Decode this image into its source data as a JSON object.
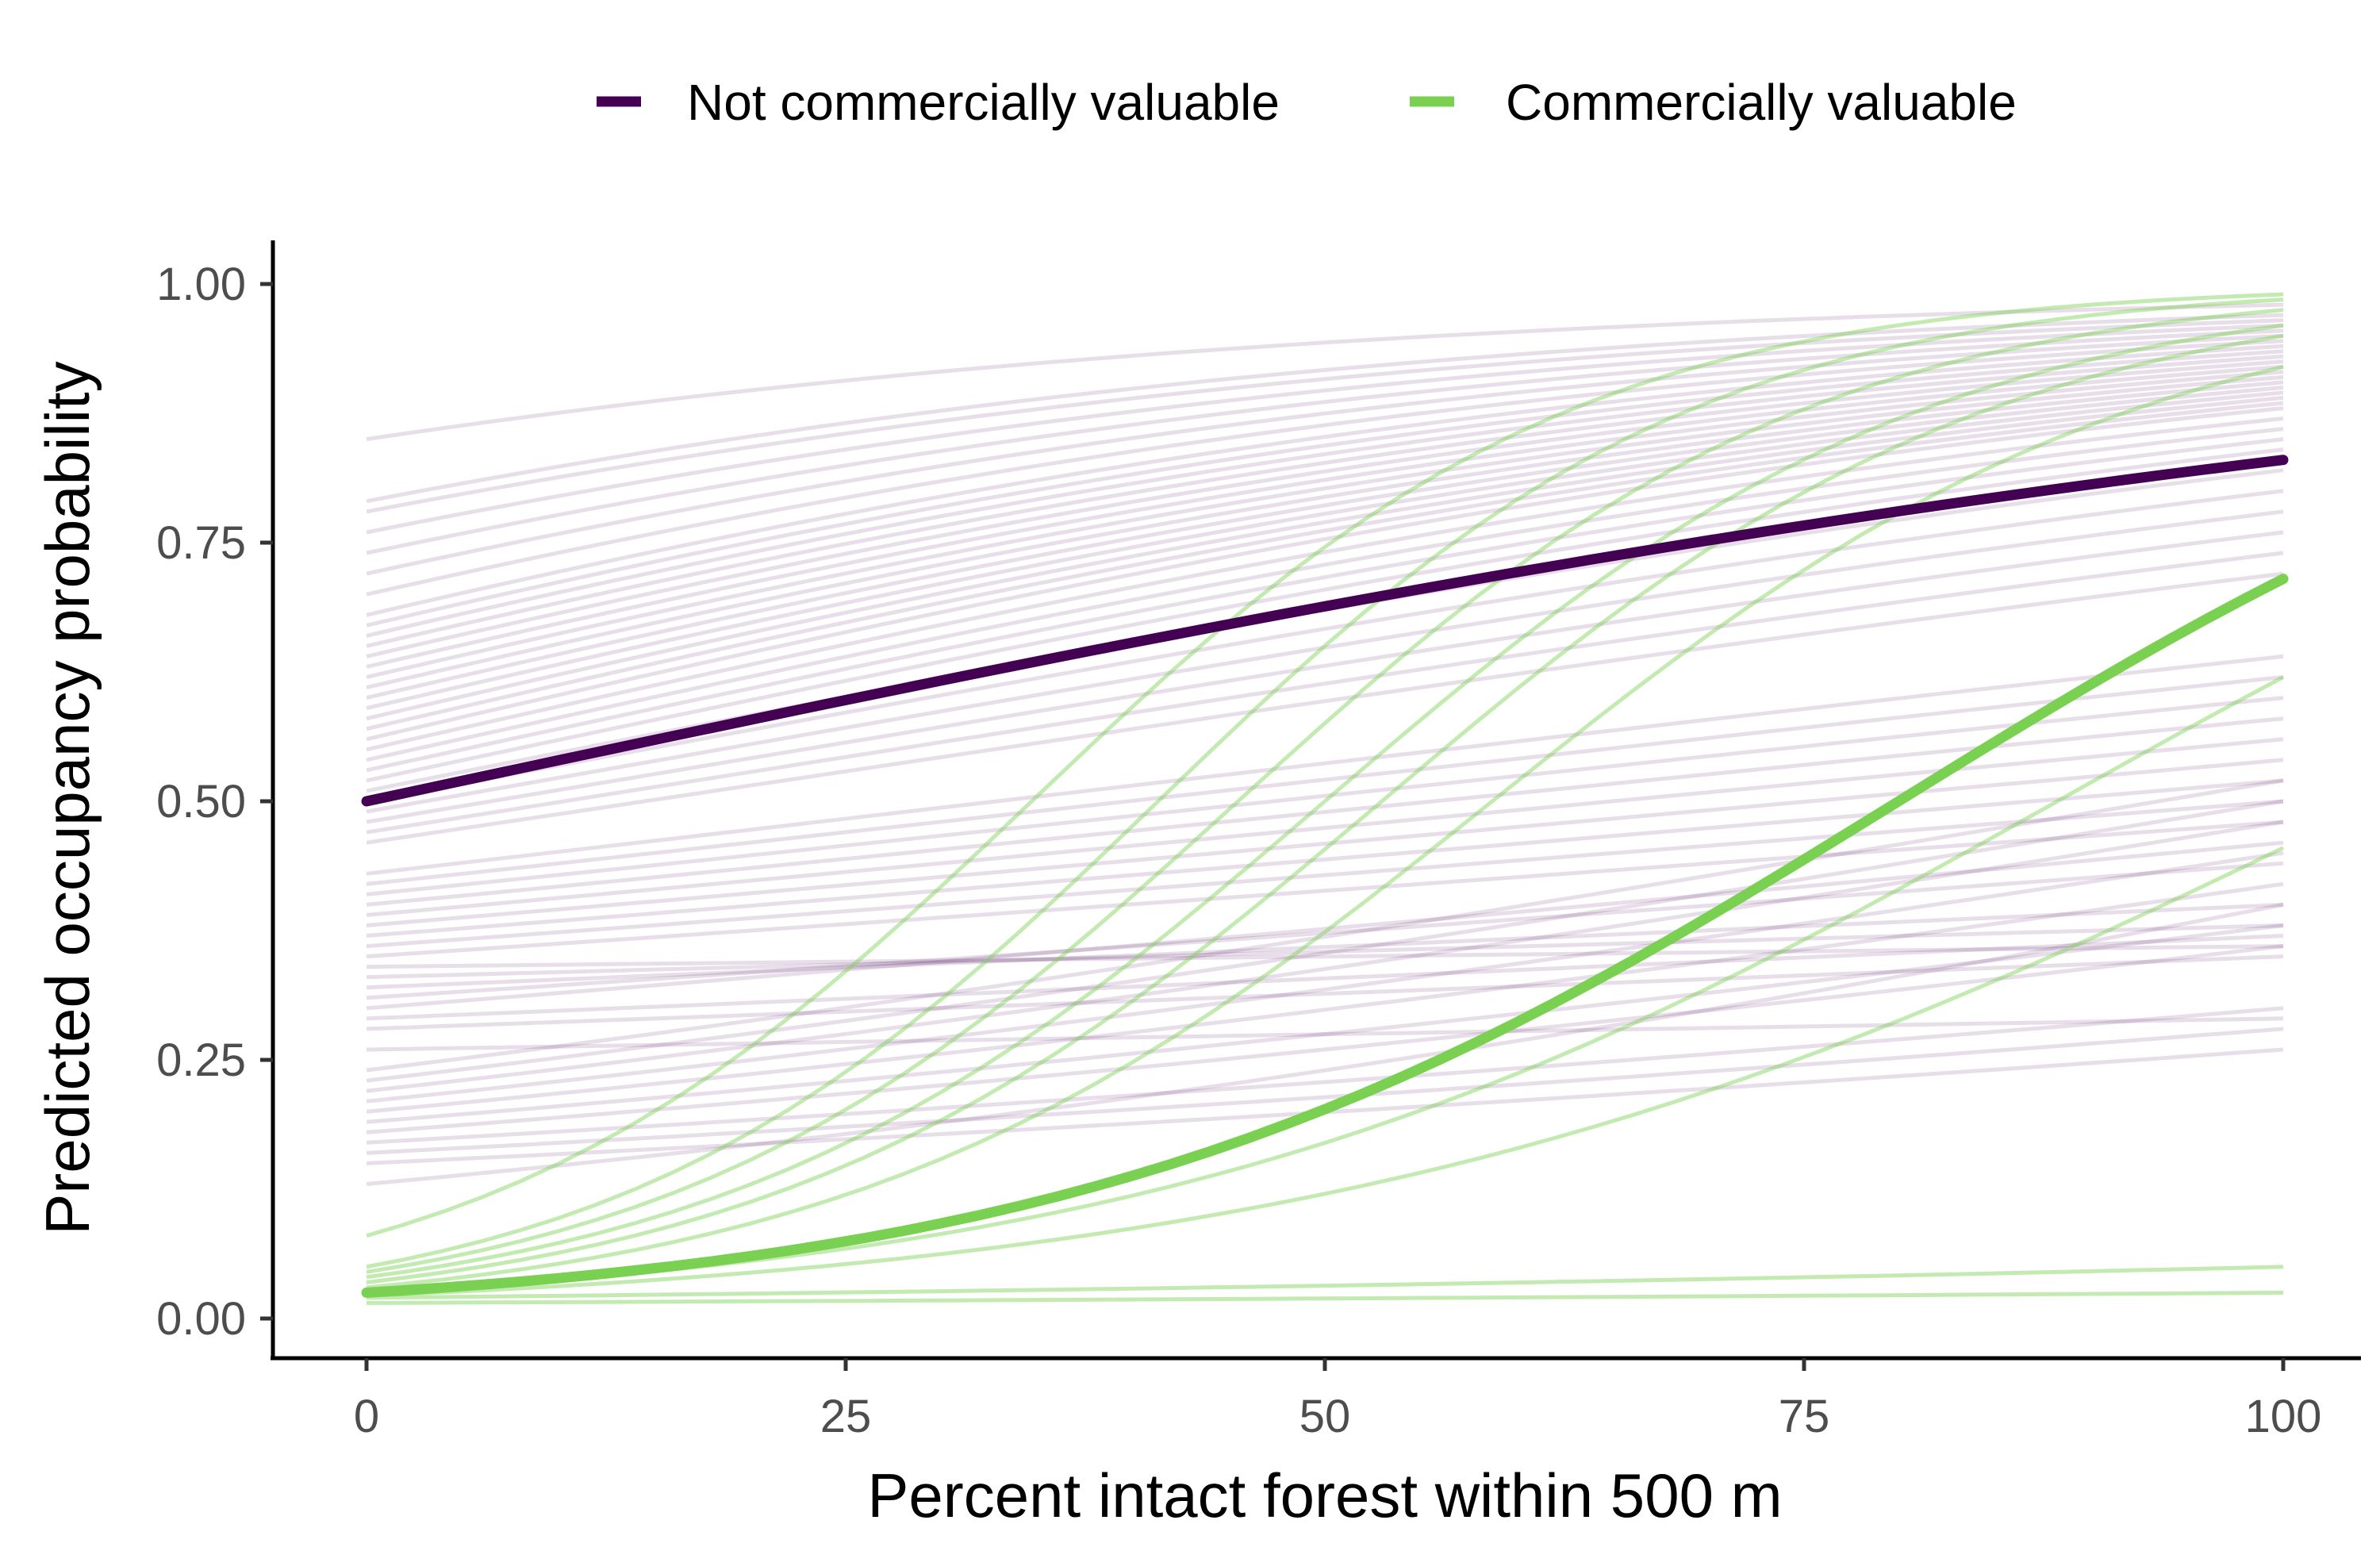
{
  "chart_data": {
    "type": "line",
    "title": "",
    "xlabel": "Percent intact forest within 500 m",
    "ylabel": "Predicted occupancy probability",
    "xlim": [
      0,
      100
    ],
    "ylim": [
      0,
      1
    ],
    "x_ticks": [
      0,
      25,
      50,
      75,
      100
    ],
    "x_tick_labels": [
      "0",
      "25",
      "50",
      "75",
      "100"
    ],
    "y_ticks": [
      0,
      0.25,
      0.5,
      0.75,
      1.0
    ],
    "y_tick_labels": [
      "0.00",
      "0.25",
      "0.50",
      "0.75",
      "1.00"
    ],
    "grid": false,
    "legend_position": "top",
    "legend": [
      {
        "name": "Not commercially valuable",
        "color": "#440154"
      },
      {
        "name": "Commercially valuable",
        "color": "#7AD151"
      }
    ],
    "series": [
      {
        "name": "Not commercially valuable",
        "role": "mean",
        "color": "#440154",
        "p0": 0.5,
        "p100": 0.83
      },
      {
        "name": "Commercially valuable",
        "role": "mean",
        "color": "#7AD151",
        "p0": 0.025,
        "p100": 0.715
      }
    ],
    "species_curves": {
      "not_commercial": {
        "color": "#440154",
        "curves": [
          [
            0.85,
            0.98
          ],
          [
            0.79,
            0.97
          ],
          [
            0.78,
            0.965
          ],
          [
            0.76,
            0.96
          ],
          [
            0.74,
            0.955
          ],
          [
            0.72,
            0.95
          ],
          [
            0.7,
            0.945
          ],
          [
            0.68,
            0.94
          ],
          [
            0.67,
            0.935
          ],
          [
            0.66,
            0.93
          ],
          [
            0.65,
            0.925
          ],
          [
            0.64,
            0.92
          ],
          [
            0.63,
            0.915
          ],
          [
            0.62,
            0.91
          ],
          [
            0.61,
            0.905
          ],
          [
            0.6,
            0.9
          ],
          [
            0.59,
            0.895
          ],
          [
            0.58,
            0.89
          ],
          [
            0.57,
            0.885
          ],
          [
            0.56,
            0.88
          ],
          [
            0.55,
            0.87
          ],
          [
            0.54,
            0.86
          ],
          [
            0.53,
            0.85
          ],
          [
            0.52,
            0.84
          ],
          [
            0.51,
            0.82
          ],
          [
            0.5,
            0.8
          ],
          [
            0.49,
            0.78
          ],
          [
            0.48,
            0.76
          ],
          [
            0.47,
            0.74
          ],
          [
            0.46,
            0.72
          ],
          [
            0.43,
            0.64
          ],
          [
            0.42,
            0.62
          ],
          [
            0.41,
            0.6
          ],
          [
            0.4,
            0.58
          ],
          [
            0.39,
            0.56
          ],
          [
            0.38,
            0.54
          ],
          [
            0.37,
            0.52
          ],
          [
            0.36,
            0.5
          ],
          [
            0.35,
            0.48
          ],
          [
            0.34,
            0.36
          ],
          [
            0.33,
            0.38
          ],
          [
            0.32,
            0.4
          ],
          [
            0.31,
            0.44
          ],
          [
            0.3,
            0.46
          ],
          [
            0.29,
            0.37
          ],
          [
            0.28,
            0.35
          ],
          [
            0.26,
            0.29
          ],
          [
            0.24,
            0.52
          ],
          [
            0.23,
            0.5
          ],
          [
            0.22,
            0.48
          ],
          [
            0.21,
            0.45
          ],
          [
            0.2,
            0.42
          ],
          [
            0.19,
            0.38
          ],
          [
            0.18,
            0.36
          ],
          [
            0.17,
            0.3
          ],
          [
            0.16,
            0.28
          ],
          [
            0.15,
            0.26
          ],
          [
            0.13,
            0.4
          ]
        ]
      },
      "commercial": {
        "color": "#7AD151",
        "curves": [
          [
            0.08,
            0.99
          ],
          [
            0.05,
            0.985
          ],
          [
            0.045,
            0.975
          ],
          [
            0.04,
            0.96
          ],
          [
            0.035,
            0.95
          ],
          [
            0.03,
            0.92
          ],
          [
            0.025,
            0.62
          ],
          [
            0.022,
            0.455
          ],
          [
            0.02,
            0.05
          ],
          [
            0.015,
            0.025
          ]
        ]
      }
    }
  }
}
